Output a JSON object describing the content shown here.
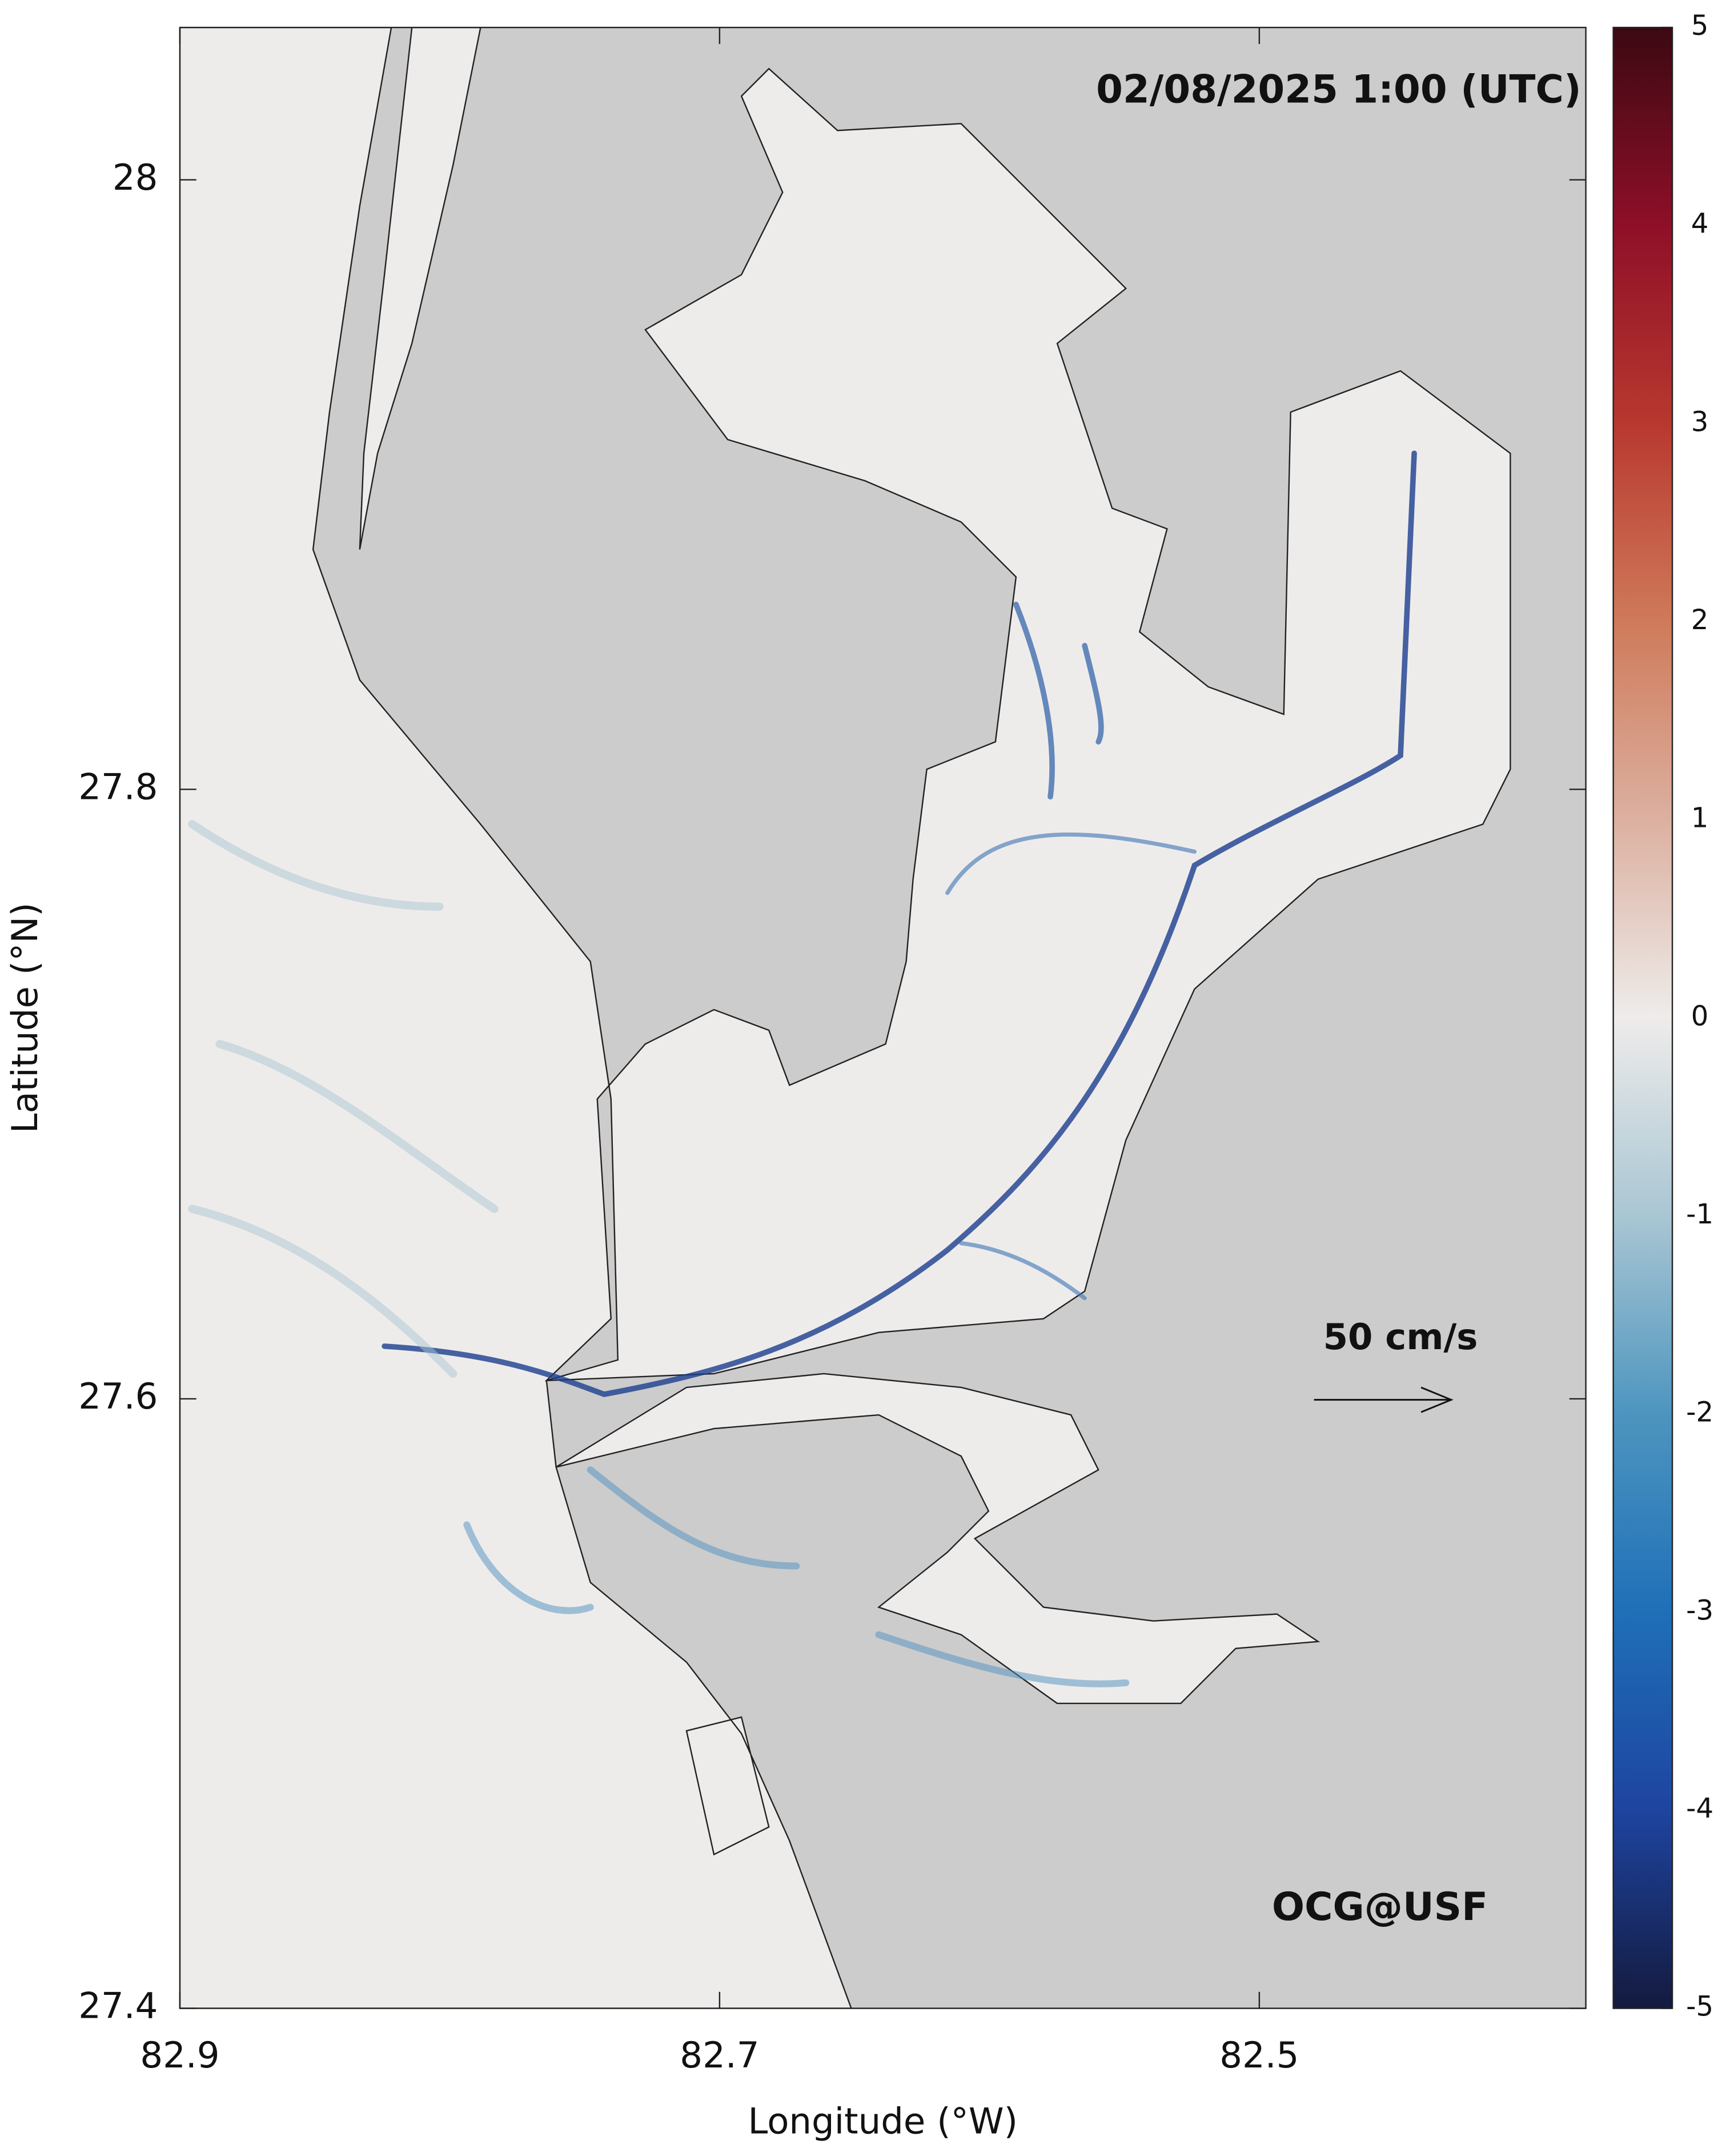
{
  "map": {
    "title": "02/08/2025 1:00 (UTC)",
    "xlabel": "Longitude (°W)",
    "ylabel": "Latitude (°N)",
    "xlim": [
      82.9,
      82.379
    ],
    "ylim": [
      27.4,
      28.05
    ],
    "xticks": [
      82.9,
      82.7,
      82.5
    ],
    "yticks": [
      27.4,
      27.6,
      27.8,
      28
    ],
    "colorbar": {
      "lim": [
        -5,
        5
      ],
      "ticks": [
        -5,
        -4,
        -3,
        -2,
        -1,
        0,
        1,
        2,
        3,
        4,
        5
      ],
      "colors": [
        "#141a3e",
        "#1e44a0",
        "#1f6fb8",
        "#4d95bf",
        "#a9c6d3",
        "#eeeceb",
        "#dcb0a0",
        "#cf7a5a",
        "#b8382f",
        "#8f0f28",
        "#3b0912"
      ]
    },
    "land_color": "#cccccc",
    "water_color": "#eeeceb",
    "scale_label": "50 cm/s",
    "credit": "OCG@USF"
  }
}
